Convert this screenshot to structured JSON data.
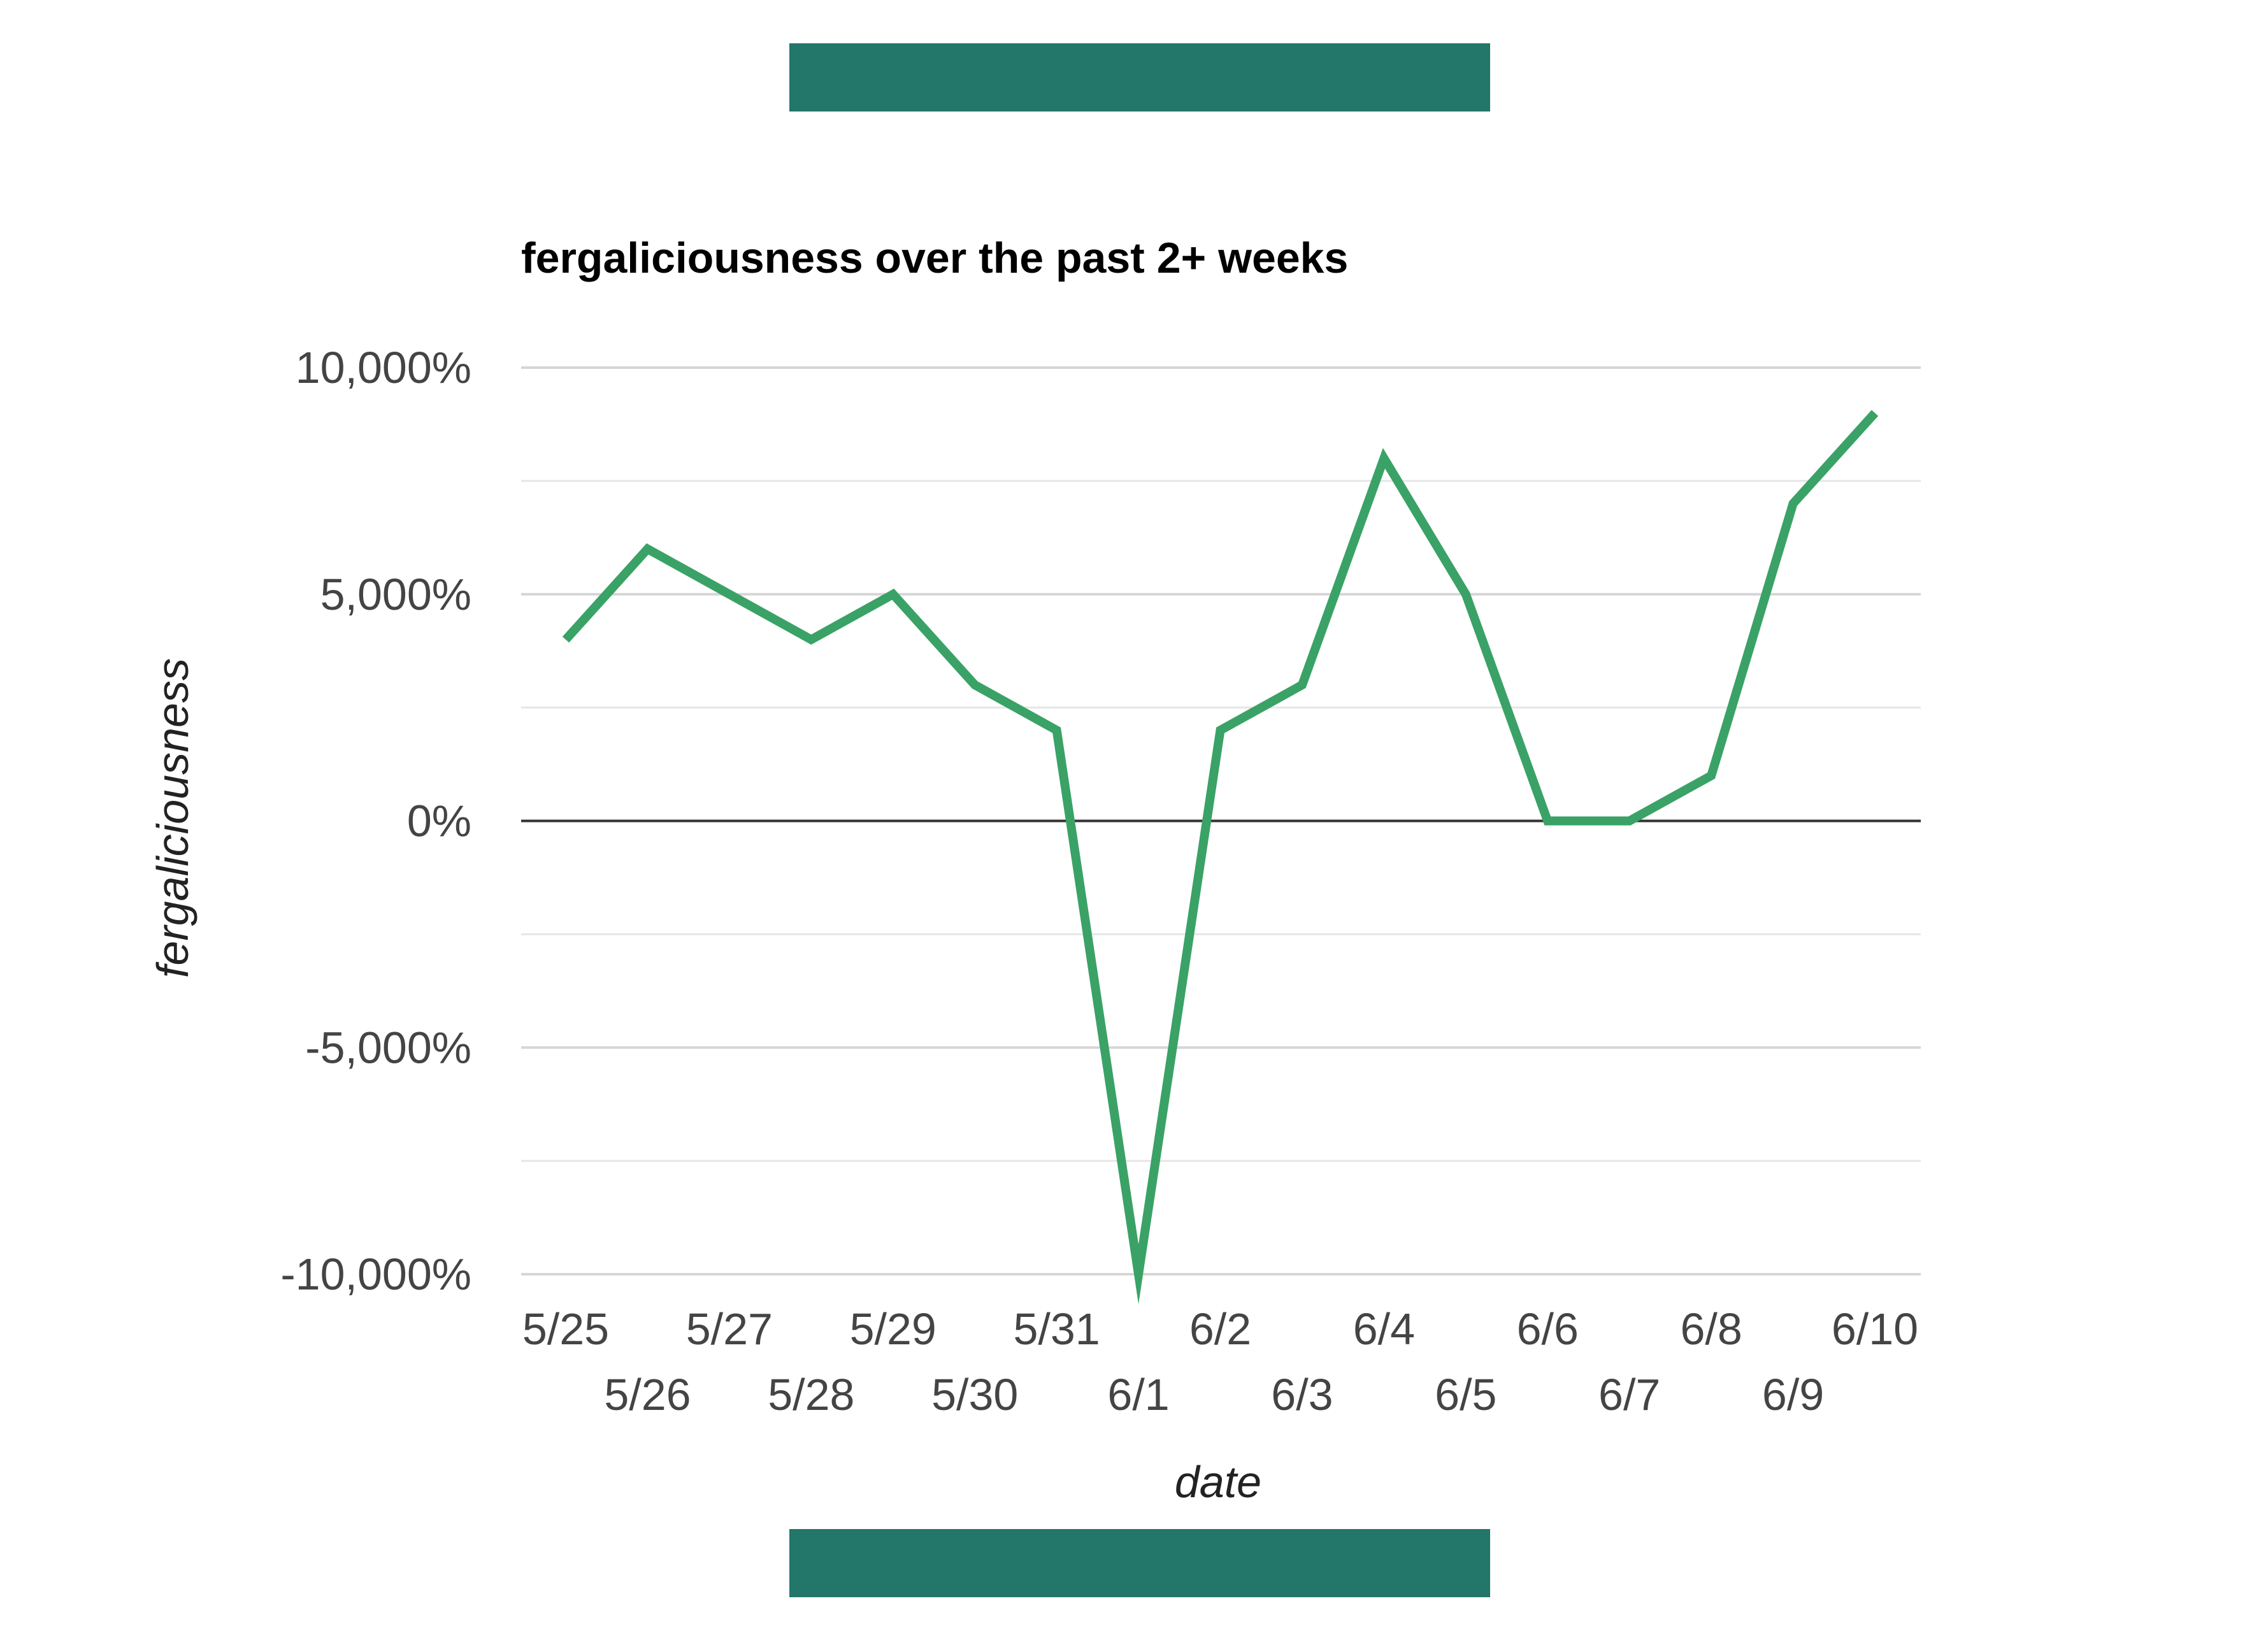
{
  "decorations": {
    "bar_color": "#22766A"
  },
  "chart_data": {
    "type": "line",
    "title": "fergaliciousness over the past 2+ weeks",
    "xlabel": "date",
    "ylabel": "fergaliciousness",
    "categories": [
      "5/25",
      "5/26",
      "5/27",
      "5/28",
      "5/29",
      "5/30",
      "5/31",
      "6/1",
      "6/2",
      "6/3",
      "6/4",
      "6/5",
      "6/6",
      "6/7",
      "6/8",
      "6/9",
      "6/10"
    ],
    "series": [
      {
        "values": [
          4000,
          6000,
          5000,
          4000,
          5000,
          3000,
          2000,
          -10000,
          2000,
          3000,
          8000,
          5000,
          0,
          0,
          1000,
          7000,
          9000
        ],
        "color": "#3AA266"
      }
    ],
    "ylim": [
      -10000,
      10000
    ],
    "y_ticks": [
      {
        "value": 10000,
        "label": "10,000%"
      },
      {
        "value": 5000,
        "label": "5,000%"
      },
      {
        "value": 0,
        "label": "0%"
      },
      {
        "value": -5000,
        "label": "-5,000%"
      },
      {
        "value": -10000,
        "label": "-10,000%"
      }
    ],
    "y_minor_gridlines": [
      7500,
      2500,
      -2500,
      -7500
    ],
    "grid": true,
    "gridline_color": "#D6D6D6",
    "zero_line_color": "#333333",
    "legend": "none"
  }
}
